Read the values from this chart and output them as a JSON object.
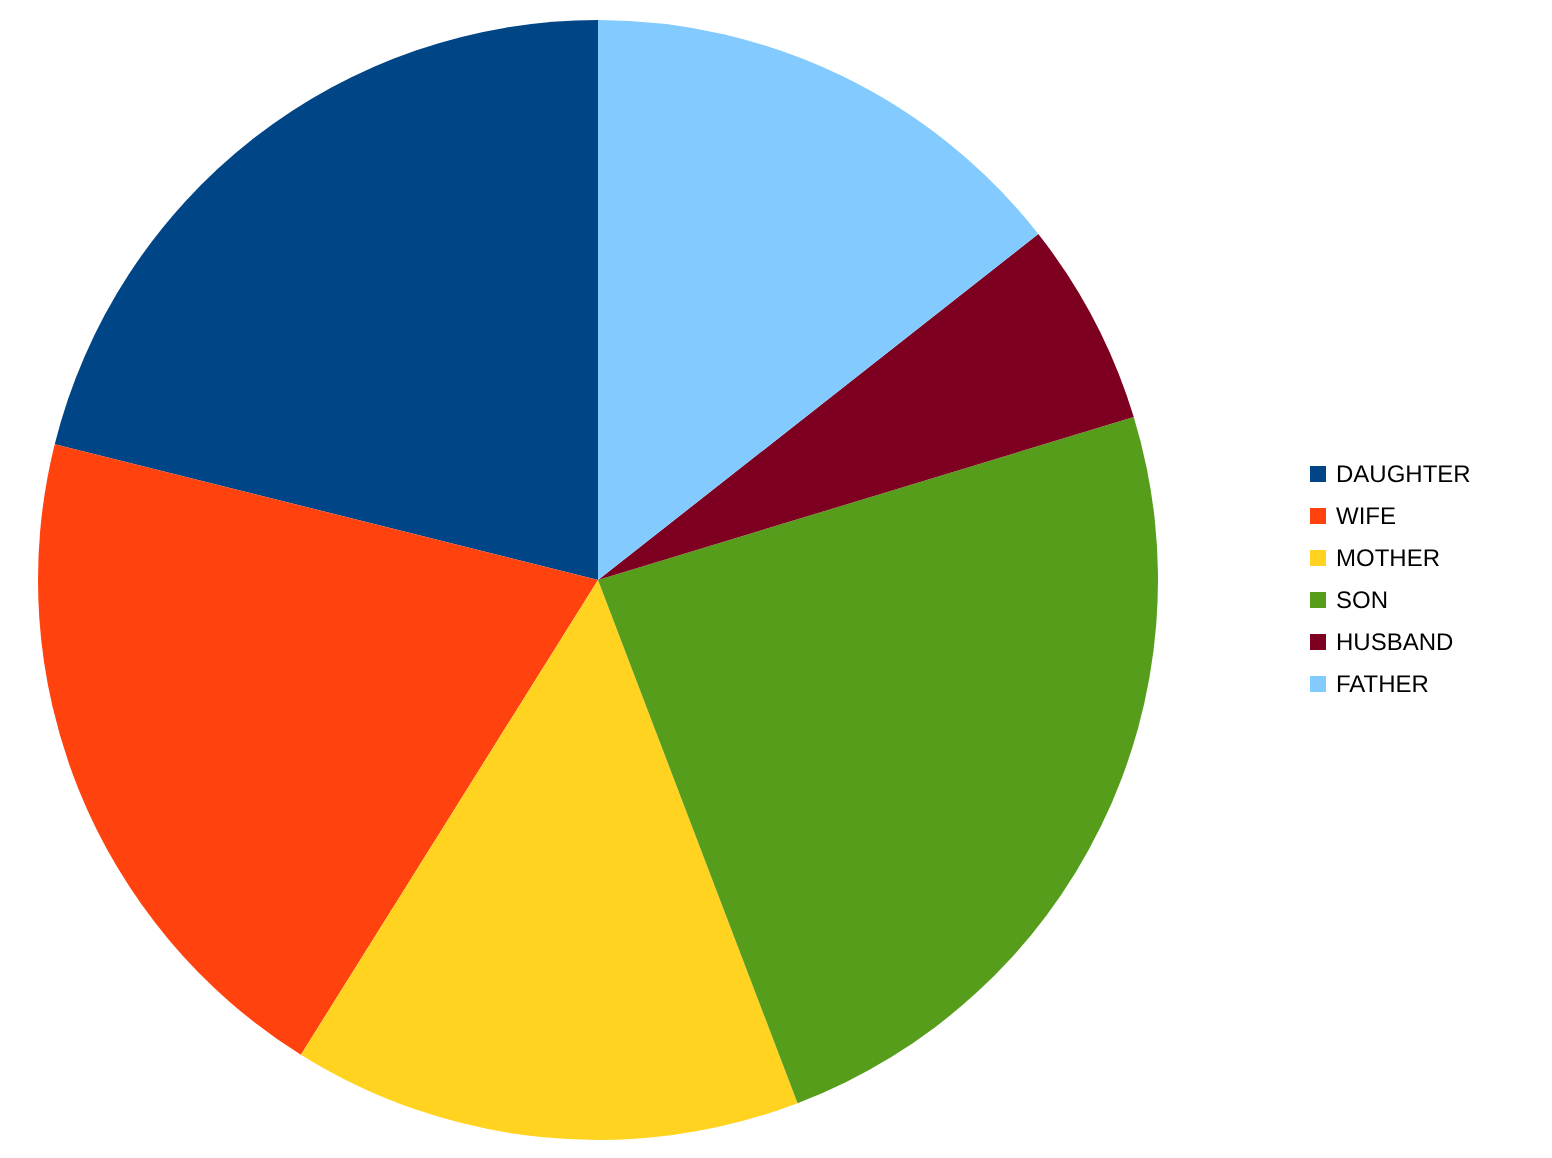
{
  "chart_data": {
    "type": "pie",
    "categories": [
      "DAUGHTER",
      "WIFE",
      "MOTHER",
      "SON",
      "HUSBAND",
      "FATHER"
    ],
    "values": [
      21.1,
      20.0,
      14.7,
      23.9,
      5.9,
      14.4
    ],
    "colors": [
      "#004586",
      "#ff420e",
      "#ffd320",
      "#579d1c",
      "#7e0021",
      "#83caff"
    ],
    "legend": "right"
  }
}
